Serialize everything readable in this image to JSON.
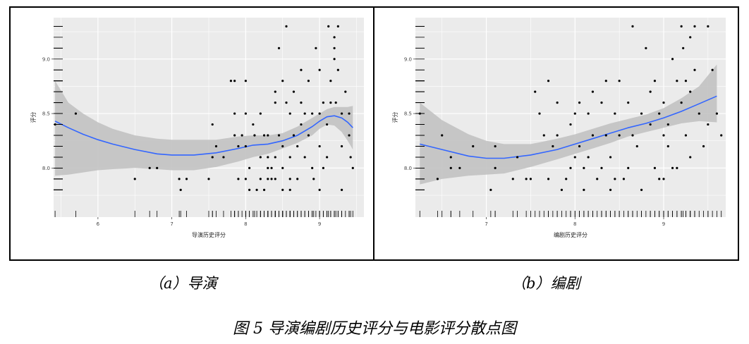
{
  "chart_data": [
    {
      "type": "scatter",
      "title": "",
      "xlabel": "导演历史评分",
      "ylabel": "评分",
      "xlim": [
        5.4,
        9.6
      ],
      "ylim": [
        7.55,
        9.38
      ],
      "x_ticks": [
        6,
        7,
        8,
        9
      ],
      "y_ticks": [
        8.0,
        8.5,
        9.0
      ],
      "x_tick_labels": [
        "6",
        "7",
        "8",
        "9"
      ],
      "y_tick_labels": [
        "8.0",
        "8.5",
        "9.0"
      ],
      "grid": true,
      "rug": true,
      "smooth_color": "#3366ff",
      "band_color": "#c2c2c2",
      "points": [
        [
          5.42,
          8.4
        ],
        [
          5.7,
          8.5
        ],
        [
          6.5,
          7.9
        ],
        [
          6.7,
          8.0
        ],
        [
          6.8,
          8.0
        ],
        [
          7.1,
          7.9
        ],
        [
          7.12,
          7.8
        ],
        [
          7.2,
          7.9
        ],
        [
          7.5,
          7.9
        ],
        [
          7.55,
          8.1
        ],
        [
          7.55,
          8.4
        ],
        [
          7.6,
          8.2
        ],
        [
          7.7,
          8.1
        ],
        [
          7.8,
          8.8
        ],
        [
          7.85,
          8.3
        ],
        [
          7.85,
          8.8
        ],
        [
          7.85,
          8.5
        ],
        [
          7.9,
          7.9
        ],
        [
          7.9,
          8.2
        ],
        [
          7.95,
          8.3
        ],
        [
          8.0,
          7.9
        ],
        [
          8.0,
          8.2
        ],
        [
          8.0,
          8.8
        ],
        [
          8.0,
          8.5
        ],
        [
          8.05,
          8.0
        ],
        [
          8.05,
          7.8
        ],
        [
          8.1,
          8.4
        ],
        [
          8.12,
          8.3
        ],
        [
          8.15,
          7.8
        ],
        [
          8.2,
          8.1
        ],
        [
          8.2,
          8.5
        ],
        [
          8.25,
          8.3
        ],
        [
          8.25,
          7.8
        ],
        [
          8.3,
          7.9
        ],
        [
          8.3,
          8.0
        ],
        [
          8.3,
          8.1
        ],
        [
          8.3,
          8.3
        ],
        [
          8.35,
          7.9
        ],
        [
          8.35,
          8.0
        ],
        [
          8.4,
          8.6
        ],
        [
          8.4,
          8.7
        ],
        [
          8.4,
          8.1
        ],
        [
          8.4,
          7.9
        ],
        [
          8.45,
          9.1
        ],
        [
          8.45,
          8.3
        ],
        [
          8.5,
          8.8
        ],
        [
          8.5,
          8.2
        ],
        [
          8.5,
          8.0
        ],
        [
          8.5,
          7.8
        ],
        [
          8.55,
          9.3
        ],
        [
          8.55,
          8.6
        ],
        [
          8.6,
          8.5
        ],
        [
          8.6,
          8.1
        ],
        [
          8.6,
          7.9
        ],
        [
          8.65,
          8.7
        ],
        [
          8.65,
          8.3
        ],
        [
          8.7,
          8.2
        ],
        [
          8.7,
          7.9
        ],
        [
          8.75,
          8.9
        ],
        [
          8.75,
          8.6
        ],
        [
          8.75,
          8.4
        ],
        [
          8.8,
          8.5
        ],
        [
          8.8,
          8.1
        ],
        [
          8.85,
          8.8
        ],
        [
          8.85,
          8.3
        ],
        [
          8.9,
          8.5
        ],
        [
          8.9,
          8.0
        ],
        [
          8.92,
          7.9
        ],
        [
          8.95,
          9.1
        ],
        [
          9.0,
          8.9
        ],
        [
          9.0,
          8.5
        ],
        [
          9.0,
          8.2
        ],
        [
          9.05,
          8.6
        ],
        [
          9.05,
          8.0
        ],
        [
          9.1,
          8.4
        ],
        [
          9.1,
          8.1
        ],
        [
          9.12,
          9.3
        ],
        [
          9.15,
          8.6
        ],
        [
          9.15,
          8.8
        ],
        [
          9.2,
          9.2
        ],
        [
          9.2,
          9.1
        ],
        [
          9.2,
          9.0
        ],
        [
          9.22,
          8.6
        ],
        [
          9.25,
          9.3
        ],
        [
          9.25,
          8.9
        ],
        [
          9.3,
          8.5
        ],
        [
          9.3,
          8.2
        ],
        [
          9.3,
          7.8
        ],
        [
          9.35,
          8.7
        ],
        [
          9.4,
          8.5
        ],
        [
          9.42,
          8.1
        ],
        [
          9.45,
          8.0
        ],
        [
          8.2,
          7.9
        ],
        [
          8.6,
          7.8
        ],
        [
          9.0,
          7.8
        ],
        [
          9.4,
          8.3
        ]
      ],
      "smooth": [
        [
          5.42,
          8.43
        ],
        [
          5.6,
          8.37
        ],
        [
          5.8,
          8.31
        ],
        [
          6.0,
          8.26
        ],
        [
          6.2,
          8.22
        ],
        [
          6.5,
          8.17
        ],
        [
          6.8,
          8.13
        ],
        [
          7.0,
          8.12
        ],
        [
          7.3,
          8.12
        ],
        [
          7.6,
          8.14
        ],
        [
          7.9,
          8.18
        ],
        [
          8.1,
          8.21
        ],
        [
          8.3,
          8.22
        ],
        [
          8.5,
          8.25
        ],
        [
          8.7,
          8.3
        ],
        [
          8.9,
          8.38
        ],
        [
          9.0,
          8.43
        ],
        [
          9.1,
          8.47
        ],
        [
          9.2,
          8.48
        ],
        [
          9.3,
          8.46
        ],
        [
          9.38,
          8.42
        ],
        [
          9.45,
          8.37
        ]
      ],
      "band_upper": [
        [
          5.42,
          8.8
        ],
        [
          5.6,
          8.6
        ],
        [
          5.8,
          8.5
        ],
        [
          6.0,
          8.42
        ],
        [
          6.2,
          8.36
        ],
        [
          6.5,
          8.3
        ],
        [
          6.8,
          8.27
        ],
        [
          7.0,
          8.26
        ],
        [
          7.3,
          8.26
        ],
        [
          7.6,
          8.26
        ],
        [
          7.9,
          8.29
        ],
        [
          8.1,
          8.3
        ],
        [
          8.3,
          8.3
        ],
        [
          8.5,
          8.32
        ],
        [
          8.7,
          8.38
        ],
        [
          8.9,
          8.46
        ],
        [
          9.0,
          8.5
        ],
        [
          9.1,
          8.54
        ],
        [
          9.2,
          8.56
        ],
        [
          9.3,
          8.56
        ],
        [
          9.38,
          8.56
        ],
        [
          9.45,
          8.57
        ]
      ],
      "band_lower": [
        [
          5.42,
          7.93
        ],
        [
          5.6,
          7.94
        ],
        [
          5.8,
          7.96
        ],
        [
          6.0,
          7.98
        ],
        [
          6.2,
          7.99
        ],
        [
          6.5,
          8.0
        ],
        [
          6.8,
          7.99
        ],
        [
          7.0,
          7.98
        ],
        [
          7.3,
          7.98
        ],
        [
          7.6,
          8.01
        ],
        [
          7.9,
          8.06
        ],
        [
          8.1,
          8.1
        ],
        [
          8.3,
          8.13
        ],
        [
          8.5,
          8.18
        ],
        [
          8.7,
          8.23
        ],
        [
          8.9,
          8.3
        ],
        [
          9.0,
          8.36
        ],
        [
          9.1,
          8.4
        ],
        [
          9.2,
          8.39
        ],
        [
          9.3,
          8.33
        ],
        [
          9.38,
          8.25
        ],
        [
          9.45,
          8.17
        ]
      ]
    },
    {
      "type": "scatter",
      "title": "",
      "xlabel": "编剧历史评分",
      "ylabel": "评分",
      "xlim": [
        6.2,
        9.7
      ],
      "ylim": [
        7.55,
        9.38
      ],
      "x_ticks": [
        7,
        8,
        9
      ],
      "y_ticks": [
        8.0,
        8.5,
        9.0
      ],
      "x_tick_labels": [
        "7",
        "8",
        "9"
      ],
      "y_tick_labels": [
        "8.0",
        "8.5",
        "9.0"
      ],
      "grid": true,
      "rug": true,
      "smooth_color": "#3366ff",
      "band_color": "#c2c2c2",
      "points": [
        [
          6.25,
          8.5
        ],
        [
          6.45,
          7.9
        ],
        [
          6.5,
          8.3
        ],
        [
          6.6,
          8.1
        ],
        [
          6.6,
          8.0
        ],
        [
          6.7,
          8.0
        ],
        [
          6.85,
          8.2
        ],
        [
          7.05,
          7.8
        ],
        [
          7.1,
          8.2
        ],
        [
          7.1,
          8.0
        ],
        [
          7.3,
          7.9
        ],
        [
          7.35,
          8.1
        ],
        [
          7.45,
          7.9
        ],
        [
          7.5,
          7.9
        ],
        [
          7.55,
          8.7
        ],
        [
          7.6,
          8.5
        ],
        [
          7.65,
          8.3
        ],
        [
          7.7,
          8.8
        ],
        [
          7.7,
          7.9
        ],
        [
          7.75,
          8.2
        ],
        [
          7.8,
          8.6
        ],
        [
          7.8,
          8.3
        ],
        [
          7.85,
          7.8
        ],
        [
          7.9,
          7.9
        ],
        [
          7.95,
          8.4
        ],
        [
          7.95,
          8.0
        ],
        [
          8.0,
          8.5
        ],
        [
          8.0,
          8.1
        ],
        [
          8.05,
          8.6
        ],
        [
          8.05,
          8.2
        ],
        [
          8.1,
          8.0
        ],
        [
          8.1,
          7.8
        ],
        [
          8.15,
          8.5
        ],
        [
          8.15,
          8.1
        ],
        [
          8.2,
          8.7
        ],
        [
          8.2,
          8.3
        ],
        [
          8.25,
          7.9
        ],
        [
          8.3,
          8.6
        ],
        [
          8.3,
          8.0
        ],
        [
          8.35,
          8.8
        ],
        [
          8.35,
          8.3
        ],
        [
          8.4,
          7.8
        ],
        [
          8.4,
          8.1
        ],
        [
          8.45,
          8.5
        ],
        [
          8.45,
          7.9
        ],
        [
          8.5,
          8.8
        ],
        [
          8.5,
          8.3
        ],
        [
          8.55,
          7.9
        ],
        [
          8.6,
          8.0
        ],
        [
          8.6,
          8.6
        ],
        [
          8.65,
          9.3
        ],
        [
          8.65,
          8.3
        ],
        [
          8.7,
          8.2
        ],
        [
          8.75,
          8.5
        ],
        [
          8.75,
          7.8
        ],
        [
          8.8,
          9.1
        ],
        [
          8.85,
          8.7
        ],
        [
          8.85,
          8.4
        ],
        [
          8.9,
          8.8
        ],
        [
          8.9,
          8.0
        ],
        [
          8.95,
          8.5
        ],
        [
          9.0,
          8.3
        ],
        [
          9.0,
          7.9
        ],
        [
          9.0,
          8.6
        ],
        [
          9.05,
          8.2
        ],
        [
          9.1,
          8.0
        ],
        [
          9.1,
          9.0
        ],
        [
          9.15,
          8.8
        ],
        [
          9.2,
          9.3
        ],
        [
          9.2,
          8.6
        ],
        [
          9.22,
          9.1
        ],
        [
          9.25,
          8.8
        ],
        [
          9.25,
          8.3
        ],
        [
          9.3,
          9.2
        ],
        [
          9.3,
          8.7
        ],
        [
          9.3,
          8.1
        ],
        [
          9.35,
          9.3
        ],
        [
          9.35,
          8.9
        ],
        [
          9.4,
          8.5
        ],
        [
          9.45,
          8.2
        ],
        [
          9.5,
          8.4
        ],
        [
          9.5,
          9.3
        ],
        [
          9.55,
          8.9
        ],
        [
          9.6,
          8.5
        ],
        [
          9.65,
          8.3
        ],
        [
          9.05,
          8.4
        ],
        [
          8.95,
          7.9
        ],
        [
          9.15,
          8.0
        ]
      ],
      "smooth": [
        [
          6.25,
          8.22
        ],
        [
          6.5,
          8.17
        ],
        [
          6.8,
          8.11
        ],
        [
          7.0,
          8.09
        ],
        [
          7.2,
          8.09
        ],
        [
          7.5,
          8.12
        ],
        [
          7.8,
          8.17
        ],
        [
          8.0,
          8.22
        ],
        [
          8.2,
          8.27
        ],
        [
          8.4,
          8.32
        ],
        [
          8.6,
          8.37
        ],
        [
          8.8,
          8.41
        ],
        [
          9.0,
          8.46
        ],
        [
          9.2,
          8.52
        ],
        [
          9.4,
          8.59
        ],
        [
          9.6,
          8.66
        ]
      ],
      "band_upper": [
        [
          6.25,
          8.6
        ],
        [
          6.5,
          8.44
        ],
        [
          6.8,
          8.31
        ],
        [
          7.0,
          8.25
        ],
        [
          7.2,
          8.22
        ],
        [
          7.5,
          8.22
        ],
        [
          7.8,
          8.27
        ],
        [
          8.0,
          8.31
        ],
        [
          8.2,
          8.36
        ],
        [
          8.4,
          8.41
        ],
        [
          8.6,
          8.45
        ],
        [
          8.8,
          8.49
        ],
        [
          9.0,
          8.55
        ],
        [
          9.2,
          8.64
        ],
        [
          9.4,
          8.75
        ],
        [
          9.6,
          8.95
        ]
      ],
      "band_lower": [
        [
          6.25,
          7.85
        ],
        [
          6.5,
          7.9
        ],
        [
          6.8,
          7.93
        ],
        [
          7.0,
          7.94
        ],
        [
          7.2,
          7.95
        ],
        [
          7.5,
          8.01
        ],
        [
          7.8,
          8.08
        ],
        [
          8.0,
          8.13
        ],
        [
          8.2,
          8.18
        ],
        [
          8.4,
          8.23
        ],
        [
          8.6,
          8.29
        ],
        [
          8.8,
          8.33
        ],
        [
          9.0,
          8.37
        ],
        [
          9.2,
          8.41
        ],
        [
          9.4,
          8.43
        ],
        [
          9.6,
          8.42
        ]
      ]
    }
  ],
  "captions": {
    "a": "（a）导演",
    "b": "（b）编剧",
    "figure": "图 5  导演编剧历史评分与电影评分散点图"
  }
}
